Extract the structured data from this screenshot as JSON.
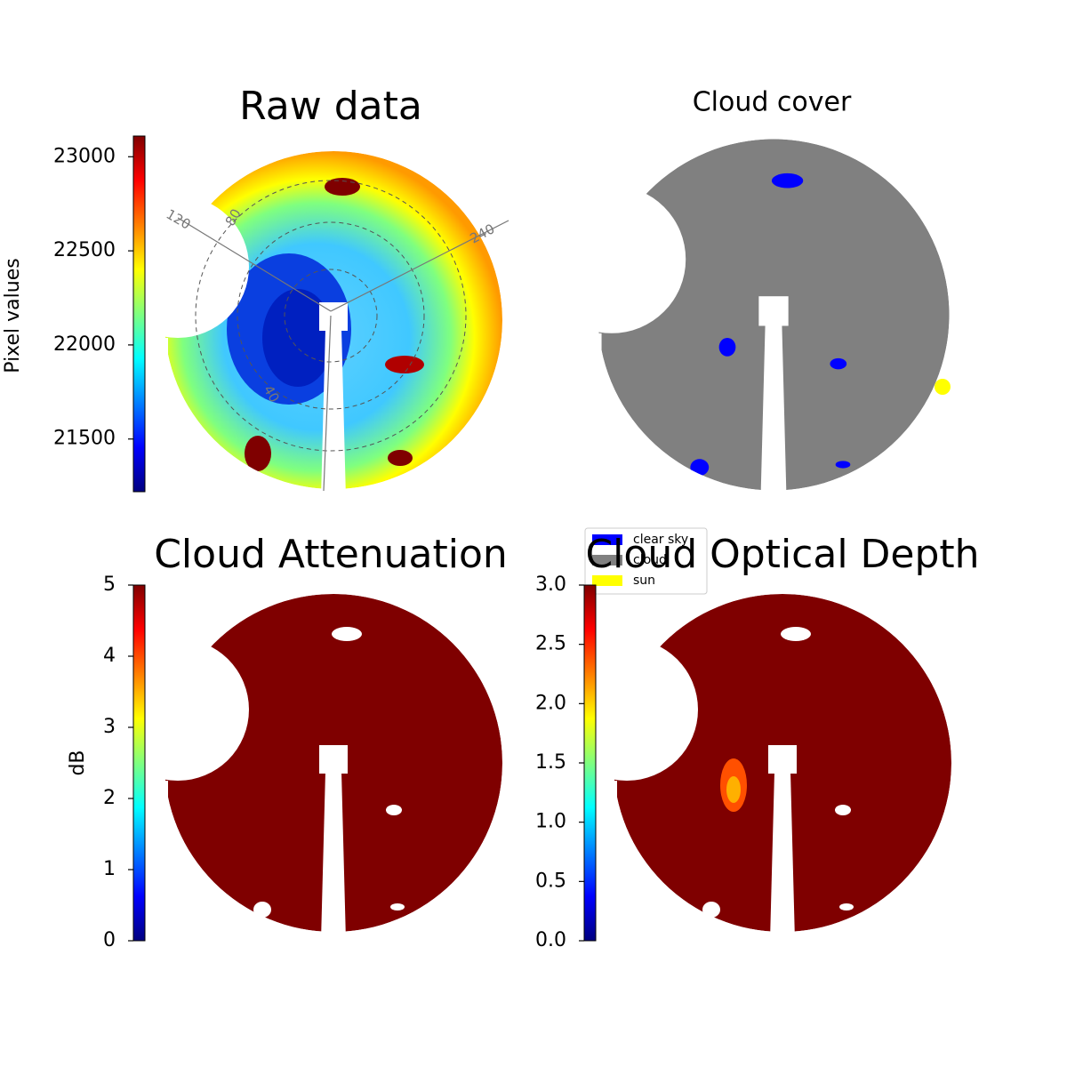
{
  "chart_data": [
    {
      "type": "image",
      "title": "Raw data",
      "polar_labels": [
        "120",
        "80",
        "240",
        "40"
      ],
      "colorbar": {
        "label": "Pixel values",
        "lim": [
          21220,
          23110
        ],
        "ticks": [
          21500,
          22000,
          22500,
          23000
        ],
        "colors": [
          "#00007f",
          "#0000ff",
          "#007fff",
          "#00ffff",
          "#7fff7f",
          "#ffff00",
          "#ff7f00",
          "#ff0000",
          "#7f0000"
        ]
      }
    },
    {
      "type": "image",
      "title": "Cloud cover",
      "legend": [
        {
          "name": "clear sky",
          "color": "#0000ff"
        },
        {
          "name": "cloud",
          "color": "#808080"
        },
        {
          "name": "sun",
          "color": "#ffff00"
        }
      ]
    },
    {
      "type": "image",
      "title": "Cloud Attenuation",
      "colorbar": {
        "label": "dB",
        "lim": [
          0,
          5
        ],
        "ticks": [
          0,
          1,
          2,
          3,
          4,
          5
        ],
        "colors": [
          "#00007f",
          "#0000ff",
          "#007fff",
          "#00ffff",
          "#7fff7f",
          "#ffff00",
          "#ff7f00",
          "#ff0000",
          "#7f0000"
        ]
      }
    },
    {
      "type": "image",
      "title": "Cloud Optical Depth",
      "colorbar": {
        "lim": [
          0,
          3
        ],
        "ticks": [
          {
            "value": 0,
            "label": "0.0"
          },
          {
            "value": 0.5,
            "label": "0.5"
          },
          {
            "value": 1,
            "label": "1.0"
          },
          {
            "value": 1.5,
            "label": "1.5"
          },
          {
            "value": 2,
            "label": "2.0"
          },
          {
            "value": 2.5,
            "label": "2.5"
          },
          {
            "value": 3,
            "label": "3.0"
          }
        ],
        "colors": [
          "#00007f",
          "#0000ff",
          "#007fff",
          "#00ffff",
          "#7fff7f",
          "#ffff00",
          "#ff7f00",
          "#ff0000",
          "#7f0000"
        ]
      }
    }
  ]
}
